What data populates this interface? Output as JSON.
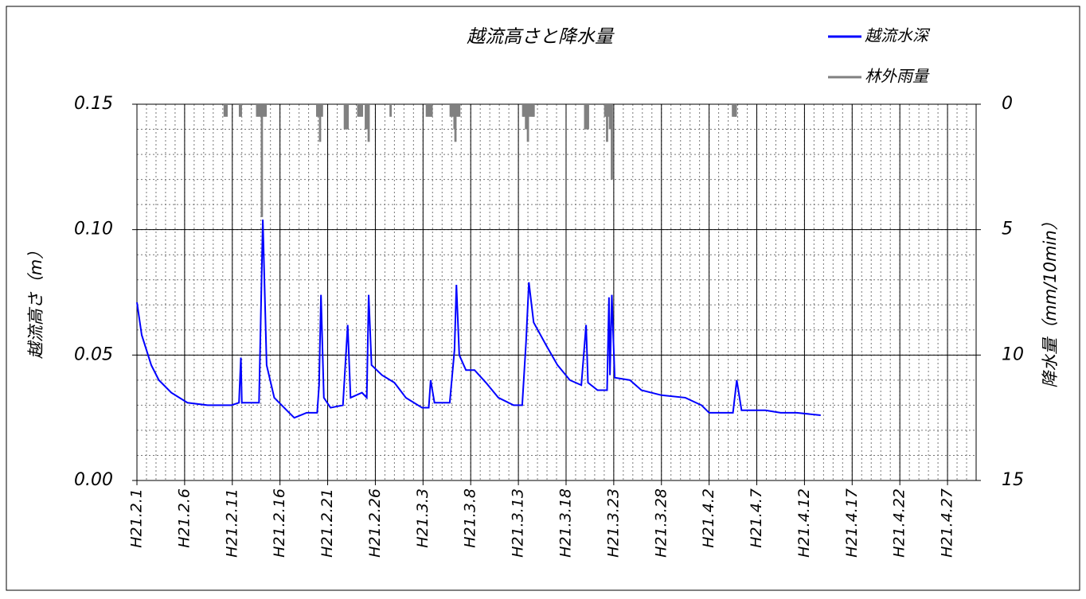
{
  "chart_data": {
    "type": "line",
    "title": "越流高さと降水量",
    "ylabel": "越流高さ（m）",
    "y2label": "降水量（mm/10min）",
    "xlim": [
      0,
      88
    ],
    "xticks": [
      {
        "value": 0,
        "label": "H21.2.1"
      },
      {
        "value": 5,
        "label": "H21.2.6"
      },
      {
        "value": 10,
        "label": "H21.2.11"
      },
      {
        "value": 15,
        "label": "H21.2.16"
      },
      {
        "value": 20,
        "label": "H21.2.21"
      },
      {
        "value": 25,
        "label": "H21.2.26"
      },
      {
        "value": 30,
        "label": "H21.3.3"
      },
      {
        "value": 35,
        "label": "H21.3.8"
      },
      {
        "value": 40,
        "label": "H21.3.13"
      },
      {
        "value": 45,
        "label": "H21.3.18"
      },
      {
        "value": 50,
        "label": "H21.3.23"
      },
      {
        "value": 55,
        "label": "H21.3.28"
      },
      {
        "value": 60,
        "label": "H21.4.2"
      },
      {
        "value": 65,
        "label": "H21.4.7"
      },
      {
        "value": 70,
        "label": "H21.4.12"
      },
      {
        "value": 75,
        "label": "H21.4.17"
      },
      {
        "value": 80,
        "label": "H21.4.22"
      },
      {
        "value": 85,
        "label": "H21.4.27"
      }
    ],
    "ylim": [
      0,
      0.15
    ],
    "yticks": [
      {
        "value": 0,
        "label": "0.00"
      },
      0.05,
      {
        "value": 0.1,
        "label": "0.10"
      },
      0.15
    ],
    "y2lim": [
      0,
      15
    ],
    "y2_inverted": true,
    "y2ticks": [
      0,
      5,
      10,
      15
    ],
    "grid": true,
    "legend": "top-right",
    "series": [
      {
        "name": "越流水深",
        "color": "#0000ff",
        "type": "line",
        "x": [
          0,
          0.5,
          1.5,
          2.3,
          3.6,
          5.3,
          7.4,
          9.9,
          10.7,
          10.9,
          11.0,
          12.8,
          13.2,
          13.6,
          14.4,
          15.7,
          16.5,
          17.8,
          18.9,
          19.1,
          19.3,
          19.6,
          20.3,
          21.6,
          22.1,
          22.4,
          23.6,
          24.1,
          24.3,
          24.6,
          25.7,
          27.0,
          28.2,
          29.9,
          30.6,
          30.8,
          31.2,
          32.8,
          33.3,
          33.5,
          33.8,
          34.5,
          35.4,
          36.6,
          37.9,
          39.5,
          40.4,
          40.8,
          41.1,
          41.6,
          42.9,
          44.1,
          45.4,
          46.6,
          47.1,
          47.3,
          48.3,
          49.3,
          49.5,
          49.6,
          49.8,
          50.1,
          51.7,
          52.9,
          55.0,
          57.5,
          59.2,
          60.0,
          62.5,
          62.9,
          63.4,
          65.9,
          67.5,
          69.2,
          71.7
        ],
        "values": [
          0.071,
          0.058,
          0.046,
          0.04,
          0.035,
          0.031,
          0.03,
          0.03,
          0.031,
          0.049,
          0.031,
          0.031,
          0.104,
          0.046,
          0.033,
          0.028,
          0.025,
          0.027,
          0.027,
          0.038,
          0.074,
          0.033,
          0.029,
          0.03,
          0.062,
          0.033,
          0.035,
          0.033,
          0.074,
          0.046,
          0.042,
          0.039,
          0.033,
          0.029,
          0.029,
          0.04,
          0.031,
          0.031,
          0.052,
          0.078,
          0.05,
          0.044,
          0.044,
          0.039,
          0.033,
          0.03,
          0.03,
          0.055,
          0.079,
          0.063,
          0.054,
          0.046,
          0.04,
          0.038,
          0.062,
          0.039,
          0.036,
          0.036,
          0.073,
          0.042,
          0.074,
          0.041,
          0.04,
          0.036,
          0.034,
          0.033,
          0.03,
          0.027,
          0.027,
          0.04,
          0.028,
          0.028,
          0.027,
          0.027,
          0.026
        ]
      },
      {
        "name": "林外雨量",
        "color": "#808080",
        "type": "bar",
        "axis": "y2",
        "x": [
          9.2,
          9.4,
          10.8,
          10.9,
          12.6,
          12.8,
          13.0,
          13.1,
          13.3,
          13.5,
          18.9,
          19.1,
          19.2,
          19.4,
          21.8,
          22.0,
          22.1,
          23.2,
          23.4,
          23.6,
          24.0,
          24.2,
          24.3,
          26.6,
          30.4,
          30.6,
          30.8,
          30.9,
          32.9,
          33.1,
          33.3,
          33.4,
          33.6,
          33.8,
          40.5,
          40.6,
          40.8,
          41.0,
          41.1,
          41.3,
          41.5,
          41.6,
          47.0,
          47.1,
          47.3,
          49.1,
          49.3,
          49.5,
          49.6,
          49.8,
          62.5,
          62.7,
          62.8
        ],
        "values": [
          0.5,
          0.5,
          0.5,
          0.5,
          0.5,
          0.5,
          0.5,
          4.5,
          0.5,
          0.5,
          0.5,
          0.5,
          1.5,
          0.5,
          1.0,
          1.0,
          1.0,
          0.5,
          0.5,
          0.5,
          1.0,
          1.0,
          1.5,
          0.5,
          0.5,
          0.5,
          0.5,
          0.5,
          0.5,
          0.5,
          1.0,
          1.5,
          0.5,
          0.5,
          0.5,
          0.5,
          1.0,
          1.5,
          0.5,
          0.5,
          0.5,
          0.5,
          1.0,
          1.0,
          1.0,
          0.5,
          1.5,
          0.5,
          1.0,
          3.0,
          0.5,
          0.5,
          0.5
        ]
      }
    ]
  }
}
